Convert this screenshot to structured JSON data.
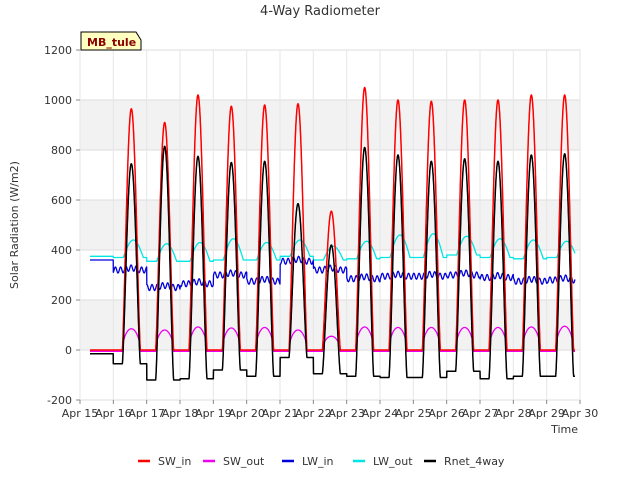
{
  "chart_data": {
    "type": "line",
    "title": "4-Way Radiometer",
    "xlabel": "Time",
    "ylabel": "Solar Radiation (W/m2)",
    "badge": "MB_tule",
    "ylim": [
      -200,
      1200
    ],
    "yticks": [
      -200,
      0,
      200,
      400,
      600,
      800,
      1000,
      1200
    ],
    "xlim": [
      15,
      30
    ],
    "xticks": [
      15,
      16,
      17,
      18,
      19,
      20,
      21,
      22,
      23,
      24,
      25,
      26,
      27,
      28,
      29,
      30
    ],
    "xtick_labels": [
      "Apr 15",
      "Apr 16",
      "Apr 17",
      "Apr 18",
      "Apr 19",
      "Apr 20",
      "Apr 21",
      "Apr 22",
      "Apr 23",
      "Apr 24",
      "Apr 25",
      "Apr 26",
      "Apr 27",
      "Apr 28",
      "Apr 29",
      "Apr 30"
    ],
    "data_start_day": 15.3,
    "data_end_day": 29.85,
    "grid": true,
    "legend_position": "bottom",
    "days": [
      "Apr 16",
      "Apr 17",
      "Apr 18",
      "Apr 19",
      "Apr 20",
      "Apr 21",
      "Apr 22",
      "Apr 23",
      "Apr 24",
      "Apr 25",
      "Apr 26",
      "Apr 27",
      "Apr 28",
      "Apr 29"
    ],
    "series": [
      {
        "name": "SW_in",
        "color": "#ff0000",
        "daily_peak": [
          965,
          910,
          1020,
          975,
          980,
          985,
          555,
          1050,
          1000,
          995,
          1000,
          1000,
          1020,
          1020
        ],
        "night_value": 0
      },
      {
        "name": "SW_out",
        "color": "#ee00ee",
        "daily_peak": [
          85,
          80,
          92,
          88,
          90,
          80,
          55,
          92,
          90,
          90,
          90,
          90,
          92,
          95
        ],
        "night_value": -5
      },
      {
        "name": "LW_in",
        "color": "#0000dd",
        "start_value": 360,
        "daily_mean": [
          320,
          250,
          265,
          300,
          275,
          355,
          320,
          285,
          295,
          295,
          300,
          290,
          275,
          280
        ]
      },
      {
        "name": "LW_out",
        "color": "#00e5e5",
        "daily_min": [
          370,
          355,
          355,
          360,
          360,
          375,
          360,
          365,
          370,
          370,
          380,
          370,
          365,
          370
        ],
        "daily_peak": [
          440,
          425,
          430,
          445,
          430,
          440,
          415,
          435,
          460,
          465,
          455,
          445,
          440,
          435
        ]
      },
      {
        "name": "Rnet_4way",
        "color": "#000000",
        "daily_peak": [
          745,
          815,
          775,
          750,
          755,
          585,
          420,
          810,
          780,
          755,
          765,
          755,
          780,
          785
        ],
        "night_value": [
          -55,
          -120,
          -115,
          -80,
          -105,
          -30,
          -95,
          -105,
          -110,
          -110,
          -85,
          -115,
          -105,
          -105
        ]
      }
    ]
  }
}
